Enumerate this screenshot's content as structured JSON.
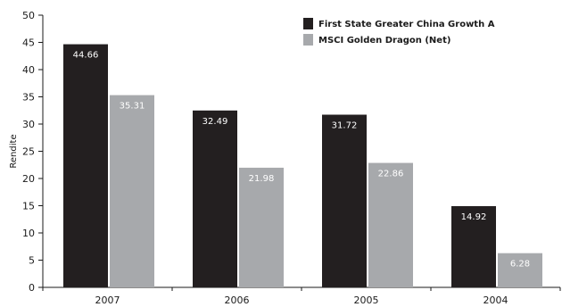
{
  "chart_data": {
    "type": "bar",
    "title": "",
    "xlabel": "",
    "ylabel": "Rendite",
    "ylim": [
      0,
      50
    ],
    "yticks": [
      0,
      5,
      10,
      15,
      20,
      25,
      30,
      35,
      40,
      45,
      50
    ],
    "categories": [
      "2007",
      "2006",
      "2005",
      "2004"
    ],
    "series": [
      {
        "name": "First State Greater China Growth A",
        "color": "#231f20",
        "label_color": "#ffffff",
        "values": [
          44.66,
          32.49,
          31.72,
          14.92
        ]
      },
      {
        "name": "MSCI Golden Dragon (Net)",
        "color": "#a7a9ac",
        "label_color": "#ffffff",
        "values": [
          35.31,
          21.98,
          22.86,
          6.28
        ]
      }
    ],
    "value_labels": [
      [
        "44.66",
        "32.49",
        "31.72",
        "14.92"
      ],
      [
        "35.31",
        "21.98",
        "22.86",
        "6.28"
      ]
    ],
    "legend_position": "top-right",
    "grid": false
  }
}
